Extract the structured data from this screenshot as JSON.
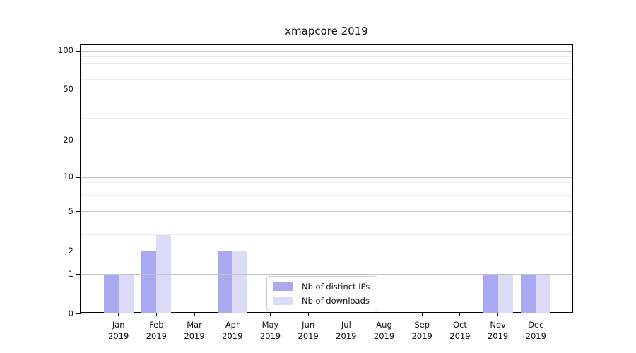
{
  "chart_data": {
    "type": "bar",
    "title": "xmapcore 2019",
    "categories": [
      "Jan 2019",
      "Feb 2019",
      "Mar 2019",
      "Apr 2019",
      "May 2019",
      "Jun 2019",
      "Jul 2019",
      "Aug 2019",
      "Sep 2019",
      "Oct 2019",
      "Nov 2019",
      "Dec 2019"
    ],
    "series": [
      {
        "name": "Nb of distinct IPs",
        "color": "#a9a9f1",
        "values": [
          1,
          2,
          0,
          2,
          0,
          0,
          0,
          0,
          0,
          0,
          1,
          1
        ]
      },
      {
        "name": "Nb of downloads",
        "color": "#dbdbf8",
        "values": [
          1,
          3,
          0,
          2,
          0,
          0,
          0,
          0,
          0,
          0,
          1,
          1
        ]
      }
    ],
    "xlabel": "",
    "ylabel": "",
    "yscale": "log1p",
    "ylim": [
      0,
      110
    ],
    "yticks": [
      0,
      1,
      2,
      5,
      10,
      20,
      50,
      100
    ],
    "gridlines_major": [
      1,
      2,
      5,
      10,
      20,
      50,
      100
    ],
    "gridlines_minor": [
      3,
      4,
      6,
      7,
      8,
      9,
      30,
      40,
      60,
      70,
      80,
      90
    ],
    "grid_over_bars": true,
    "legend_position": "lower center",
    "colors": {
      "axis": "#000000",
      "gridline_major": "#c3c3c3",
      "gridline_minor": "#ebebeb",
      "legend_border": "#cccccc",
      "background": "#ffffff"
    }
  }
}
